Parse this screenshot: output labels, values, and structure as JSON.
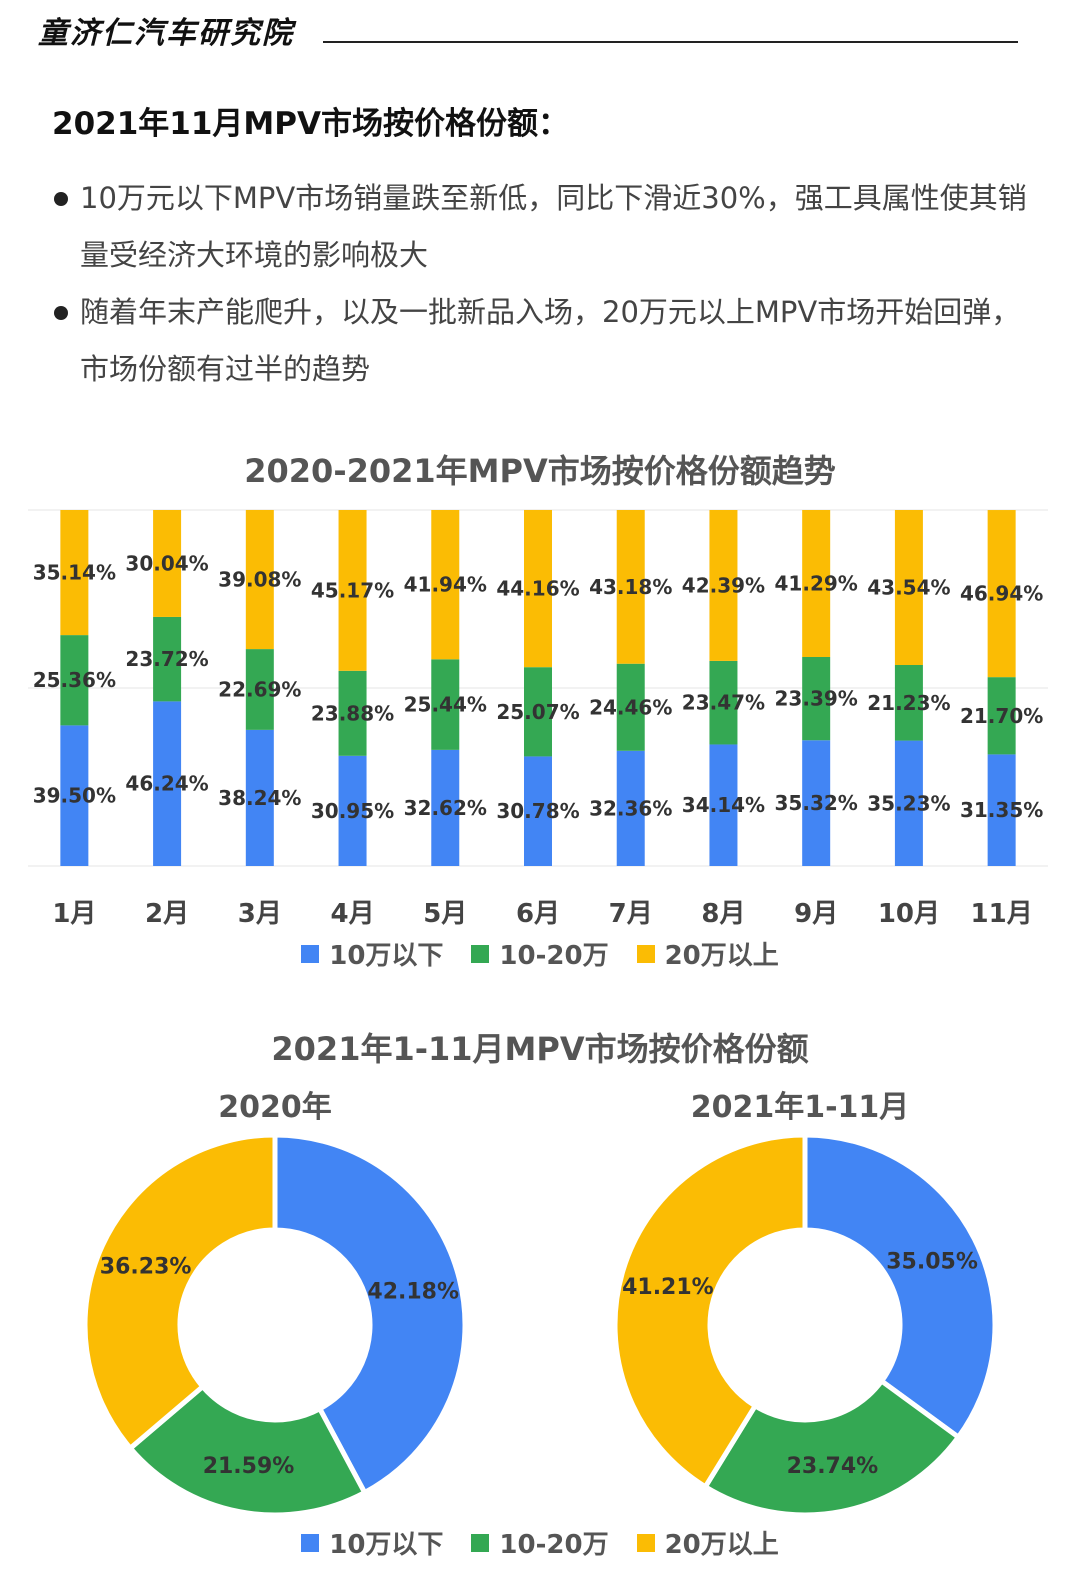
{
  "header": {
    "brand": "童济仁汽车研究院"
  },
  "section_title": "2021年11月MPV市场按价格份额：",
  "bullets": [
    "10万元以下MPV市场销量跌至新低，同比下滑近30%，强工具属性使其销量受经济大环境的影响极大",
    "随着年末产能爬升，以及一批新品入场，20万元以上MPV市场开始回弹，市场份额有过半的趋势"
  ],
  "colors": {
    "low": "#4285F4",
    "mid": "#34A853",
    "high": "#FBBC04"
  },
  "legend": [
    "10万以下",
    "10-20万",
    "20万以上"
  ],
  "chart_data": [
    {
      "type": "bar",
      "stacked": true,
      "title": "2020-2021年MPV市场按价格份额趋势",
      "categories": [
        "1月",
        "2月",
        "3月",
        "4月",
        "5月",
        "6月",
        "7月",
        "8月",
        "9月",
        "10月",
        "11月"
      ],
      "series": [
        {
          "name": "10万以下",
          "values": [
            39.5,
            46.24,
            38.24,
            30.95,
            32.62,
            30.78,
            32.36,
            34.14,
            35.32,
            35.23,
            31.35
          ],
          "labels": [
            "39.50%",
            "46.24%",
            "38.24%",
            "30.95%",
            "32.62%",
            "30.78%",
            "32.36%",
            "34.14%",
            "35.32%",
            "35.23%",
            "31.35%"
          ]
        },
        {
          "name": "10-20万",
          "values": [
            25.36,
            23.72,
            22.69,
            23.88,
            25.44,
            25.07,
            24.46,
            23.47,
            23.39,
            21.23,
            21.7
          ],
          "labels": [
            "25.36%",
            "23.72%",
            "22.69%",
            "23.88%",
            "25.44%",
            "25.07%",
            "24.46%",
            "23.47%",
            "23.39%",
            "21.23%",
            "21.70%"
          ]
        },
        {
          "name": "20万以上",
          "values": [
            35.14,
            30.04,
            39.08,
            45.17,
            41.94,
            44.16,
            43.18,
            42.39,
            41.29,
            43.54,
            46.94
          ],
          "labels": [
            "35.14%",
            "30.04%",
            "39.08%",
            "45.17%",
            "41.94%",
            "44.16%",
            "43.18%",
            "42.39%",
            "41.29%",
            "43.54%",
            "46.94%"
          ]
        }
      ],
      "ylim": [
        0,
        100
      ],
      "legend_position": "bottom"
    },
    {
      "type": "pie",
      "donut": true,
      "title": "2021年1-11月MPV市场按价格份额",
      "subtitle": "2020年",
      "categories": [
        "10万以下",
        "10-20万",
        "20万以上"
      ],
      "values": [
        42.18,
        21.59,
        36.23
      ],
      "labels": [
        "42.18%",
        "21.59%",
        "36.23%"
      ]
    },
    {
      "type": "pie",
      "donut": true,
      "title": "2021年1-11月MPV市场按价格份额",
      "subtitle": "2021年1-11月",
      "categories": [
        "10万以下",
        "10-20万",
        "20万以上"
      ],
      "values": [
        35.05,
        23.74,
        41.21
      ],
      "labels": [
        "35.05%",
        "23.74%",
        "41.21%"
      ]
    }
  ]
}
